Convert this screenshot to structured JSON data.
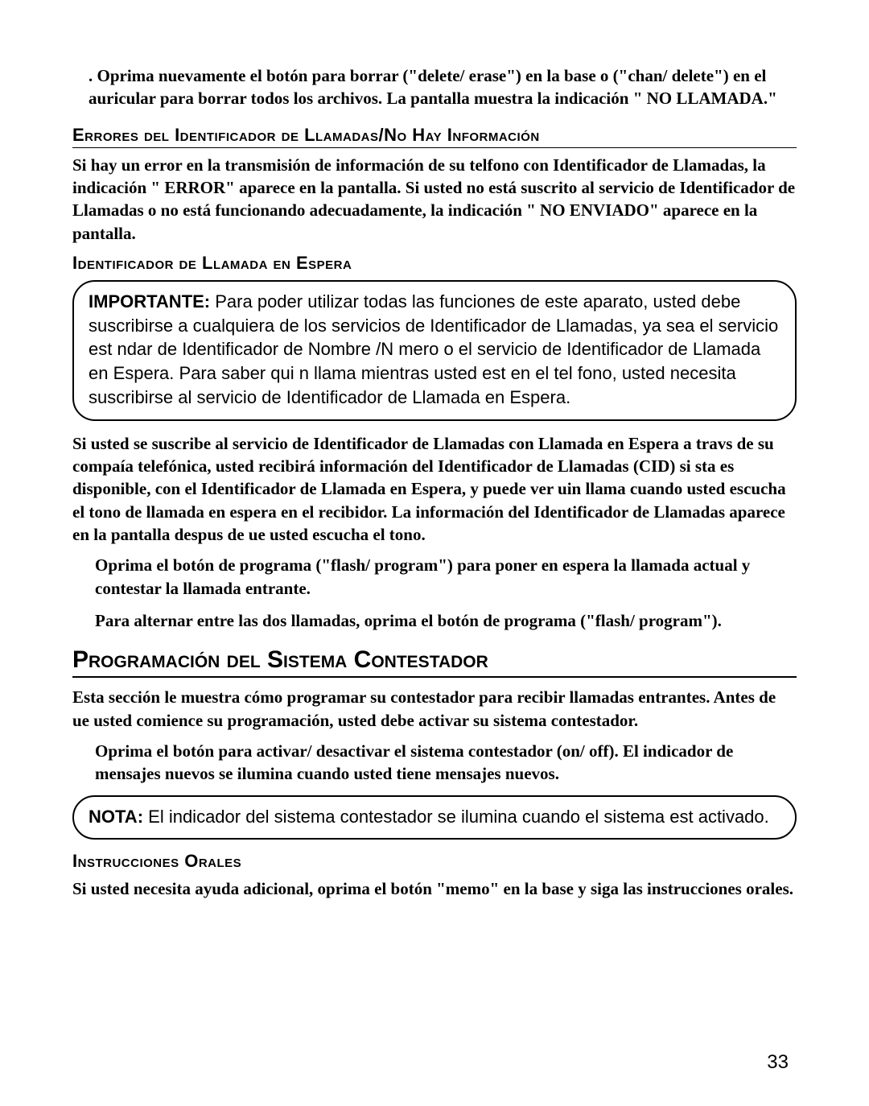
{
  "para_delete": ".  Oprima nuevamente el botón para borrar (\"delete/ erase\") en la base o (\"chan/ delete\") en el auricular para borrar todos los archivos. La pantalla muestra la indicación \"  NO LLAMADA.\"",
  "h_errores": "Errores del Identificador de Llamadas/No Hay Información",
  "p_errores": "Si hay un error en la transmisión de información de su telfono con Identificador de Llamadas, la indicación \"   ERROR\" aparece en la pantalla. Si usted no está suscrito al servicio de Identificador de Llamadas o no está funcionando adecuadamente, la indicación \"    NO ENVIADO\" aparece en la pantalla.",
  "h_espera": "Identificador de Llamada en Espera",
  "callout1_label": "IMPORTANTE:",
  "callout1_body": "  Para poder utilizar todas las funciones de este aparato, usted debe suscribirse a cualquiera de los servicios de Identificador de Llamadas, ya sea el servicio est ndar de Identificador de Nombre /N mero o el servicio de Identificador de Llamada en Espera. Para saber qui n llama mientras usted est  en el tel fono, usted necesita suscribirse al servicio de Identificador de Llamada en Espera.",
  "p_suscribe": "Si usted se suscribe al servicio de Identificador de Llamadas con Llamada en Espera a travs de su compaía telefónica, usted recibirá información del Identificador de Llamadas (CID) si sta es disponible, con el Identificador de Llamada en Espera, y puede ver uin llama cuando usted escucha el tono de llamada en espera en el recibidor. La información del Identificador de Llamadas aparece en la pantalla despus de ue usted escucha el tono.",
  "p_flash1": "Oprima el botón de programa (\"flash/ program\") para poner en espera la llamada actual y contestar la llamada entrante.",
  "p_flash2": "Para alternar entre las dos llamadas, oprima el botón de programa (\"flash/ program\").",
  "section_title": "Programación del Sistema Contestador",
  "p_section": "Esta sección le muestra cómo programar su contestador para recibir llamadas entrantes. Antes de ue usted comience su programación, usted debe activar su sistema contestador.",
  "p_onoff": "Oprima el botón para activar/ desactivar el sistema contestador (on/ off). El indicador de mensajes nuevos se ilumina cuando usted tiene mensajes nuevos.",
  "callout2_label": "NOTA:",
  "callout2_body": " El indicador del sistema contestador se ilumina cuando el sistema est  activado.",
  "h_orales": "Instrucciones Orales",
  "p_orales": "Si usted necesita ayuda adicional, oprima el botón \"memo\" en la base y siga las instrucciones orales.",
  "page_number": "33"
}
